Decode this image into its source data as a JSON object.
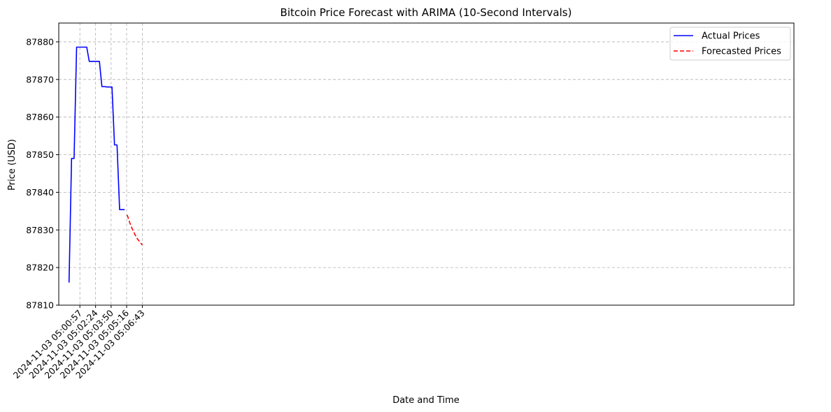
{
  "chart_data": {
    "type": "line",
    "title": "Bitcoin Price Forecast with ARIMA (10-Second Intervals)",
    "xlabel": "Date and Time",
    "ylabel": "Price (USD)",
    "ylim": [
      87810,
      87885
    ],
    "xlim": [
      "2024-11-03 04:59:00",
      "2024-11-03 06:06:53"
    ],
    "grid": true,
    "legend_position": "top-right",
    "x_ticks": [
      "2024-11-03 05:00:57",
      "2024-11-03 05:02:24",
      "2024-11-03 05:03:50",
      "2024-11-03 05:05:16",
      "2024-11-03 05:06:43"
    ],
    "y_ticks": [
      87810,
      87820,
      87830,
      87840,
      87850,
      87860,
      87870,
      87880
    ],
    "series": [
      {
        "name": "Actual Prices",
        "color": "#0000ff",
        "style": "solid",
        "x": [
          "2024-11-03 04:59:57",
          "2024-11-03 05:00:11",
          "2024-11-03 05:00:25",
          "2024-11-03 05:00:39",
          "2024-11-03 05:00:53",
          "2024-11-03 05:01:07",
          "2024-11-03 05:01:21",
          "2024-11-03 05:01:35",
          "2024-11-03 05:01:49",
          "2024-11-03 05:02:03",
          "2024-11-03 05:02:17",
          "2024-11-03 05:02:31",
          "2024-11-03 05:02:45",
          "2024-11-03 05:02:59",
          "2024-11-03 05:03:13",
          "2024-11-03 05:03:27",
          "2024-11-03 05:03:41",
          "2024-11-03 05:03:55",
          "2024-11-03 05:04:09",
          "2024-11-03 05:04:23",
          "2024-11-03 05:04:37",
          "2024-11-03 05:04:51",
          "2024-11-03 05:05:05"
        ],
        "values": [
          87816,
          87849,
          87849,
          87878.6,
          87878.6,
          87878.6,
          87878.6,
          87878.6,
          87874.8,
          87874.8,
          87874.8,
          87874.8,
          87874.8,
          87868.1,
          87868.1,
          87868,
          87868,
          87868,
          87852.6,
          87852.6,
          87835.4,
          87835.4,
          87835.4
        ]
      },
      {
        "name": "Forecasted Prices",
        "color": "#ff0000",
        "style": "dashed",
        "x": [
          "2024-11-03 05:05:19",
          "2024-11-03 05:05:33",
          "2024-11-03 05:05:47",
          "2024-11-03 05:06:01",
          "2024-11-03 05:06:15",
          "2024-11-03 05:06:29",
          "2024-11-03 05:06:43"
        ],
        "values": [
          87834,
          87832,
          87830.3,
          87828.9,
          87827.7,
          87826.8,
          87826
        ]
      }
    ]
  }
}
